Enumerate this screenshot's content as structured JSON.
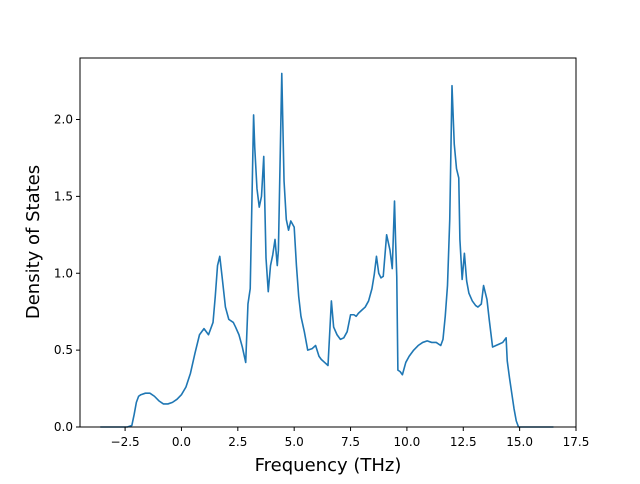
{
  "colors": {
    "line": "#1f77b4",
    "axes": "#000000",
    "background": "#ffffff"
  },
  "chart_data": {
    "type": "line",
    "title": "",
    "xlabel": "Frequency (THz)",
    "ylabel": "Density of States",
    "xlim": [
      -4.5,
      17.5
    ],
    "ylim": [
      0.0,
      2.4
    ],
    "grid": false,
    "xticks": [
      -2.5,
      0.0,
      2.5,
      5.0,
      7.5,
      10.0,
      12.5,
      15.0,
      17.5
    ],
    "xtick_labels": [
      "−2.5",
      "0.0",
      "2.5",
      "5.0",
      "7.5",
      "10.0",
      "12.5",
      "15.0",
      "17.5"
    ],
    "yticks": [
      0.0,
      0.5,
      1.0,
      1.5,
      2.0
    ],
    "ytick_labels": [
      "0.0",
      "0.5",
      "1.0",
      "1.5",
      "2.0"
    ],
    "series": [
      {
        "name": "",
        "x": [
          -3.6,
          -2.4,
          -2.2,
          -2.1,
          -2.0,
          -1.9,
          -1.8,
          -1.6,
          -1.4,
          -1.2,
          -1.0,
          -0.8,
          -0.6,
          -0.4,
          -0.2,
          0.0,
          0.2,
          0.4,
          0.6,
          0.8,
          1.0,
          1.2,
          1.4,
          1.5,
          1.6,
          1.7,
          1.8,
          1.95,
          2.1,
          2.3,
          2.4,
          2.55,
          2.7,
          2.85,
          2.95,
          3.05,
          3.2,
          3.25,
          3.35,
          3.45,
          3.55,
          3.65,
          3.75,
          3.85,
          3.95,
          4.05,
          4.15,
          4.25,
          4.3,
          4.45,
          4.55,
          4.65,
          4.75,
          4.85,
          5.0,
          5.1,
          5.2,
          5.3,
          5.45,
          5.6,
          5.8,
          5.95,
          6.1,
          6.2,
          6.35,
          6.5,
          6.65,
          6.75,
          6.9,
          7.05,
          7.2,
          7.35,
          7.5,
          7.65,
          7.75,
          7.85,
          8.0,
          8.15,
          8.3,
          8.45,
          8.55,
          8.65,
          8.75,
          8.85,
          8.95,
          9.1,
          9.25,
          9.35,
          9.45,
          9.5,
          9.55,
          9.6,
          9.7,
          9.8,
          9.95,
          10.1,
          10.3,
          10.5,
          10.7,
          10.9,
          11.1,
          11.3,
          11.5,
          11.6,
          11.7,
          11.8,
          11.9,
          12.0,
          12.1,
          12.2,
          12.3,
          12.35,
          12.45,
          12.55,
          12.65,
          12.75,
          12.9,
          13.05,
          13.15,
          13.3,
          13.4,
          13.55,
          13.65,
          13.8,
          13.95,
          14.1,
          14.25,
          14.4,
          14.45,
          14.55,
          14.65,
          14.75,
          14.85,
          14.95,
          15.1,
          16.5
        ],
        "y": [
          0.0,
          0.0,
          0.01,
          0.08,
          0.16,
          0.2,
          0.21,
          0.22,
          0.22,
          0.2,
          0.17,
          0.15,
          0.15,
          0.16,
          0.18,
          0.21,
          0.26,
          0.35,
          0.48,
          0.6,
          0.64,
          0.6,
          0.68,
          0.85,
          1.05,
          1.11,
          0.98,
          0.78,
          0.7,
          0.68,
          0.65,
          0.6,
          0.52,
          0.42,
          0.8,
          0.9,
          2.03,
          1.82,
          1.55,
          1.43,
          1.5,
          1.76,
          1.1,
          0.88,
          1.05,
          1.12,
          1.22,
          1.05,
          1.15,
          2.3,
          1.6,
          1.35,
          1.28,
          1.34,
          1.3,
          1.05,
          0.85,
          0.72,
          0.62,
          0.5,
          0.51,
          0.53,
          0.46,
          0.44,
          0.42,
          0.4,
          0.82,
          0.65,
          0.6,
          0.57,
          0.58,
          0.62,
          0.73,
          0.73,
          0.72,
          0.74,
          0.76,
          0.78,
          0.82,
          0.9,
          0.99,
          1.11,
          1.0,
          0.97,
          0.98,
          1.25,
          1.15,
          1.03,
          1.47,
          1.2,
          0.98,
          0.37,
          0.36,
          0.34,
          0.42,
          0.46,
          0.5,
          0.53,
          0.55,
          0.56,
          0.55,
          0.55,
          0.53,
          0.57,
          0.72,
          0.92,
          1.35,
          2.22,
          1.84,
          1.68,
          1.62,
          1.22,
          0.96,
          1.13,
          0.95,
          0.87,
          0.82,
          0.79,
          0.78,
          0.8,
          0.92,
          0.83,
          0.7,
          0.52,
          0.53,
          0.54,
          0.55,
          0.58,
          0.43,
          0.32,
          0.22,
          0.12,
          0.04,
          0.0,
          0.0,
          0.0
        ]
      }
    ]
  }
}
